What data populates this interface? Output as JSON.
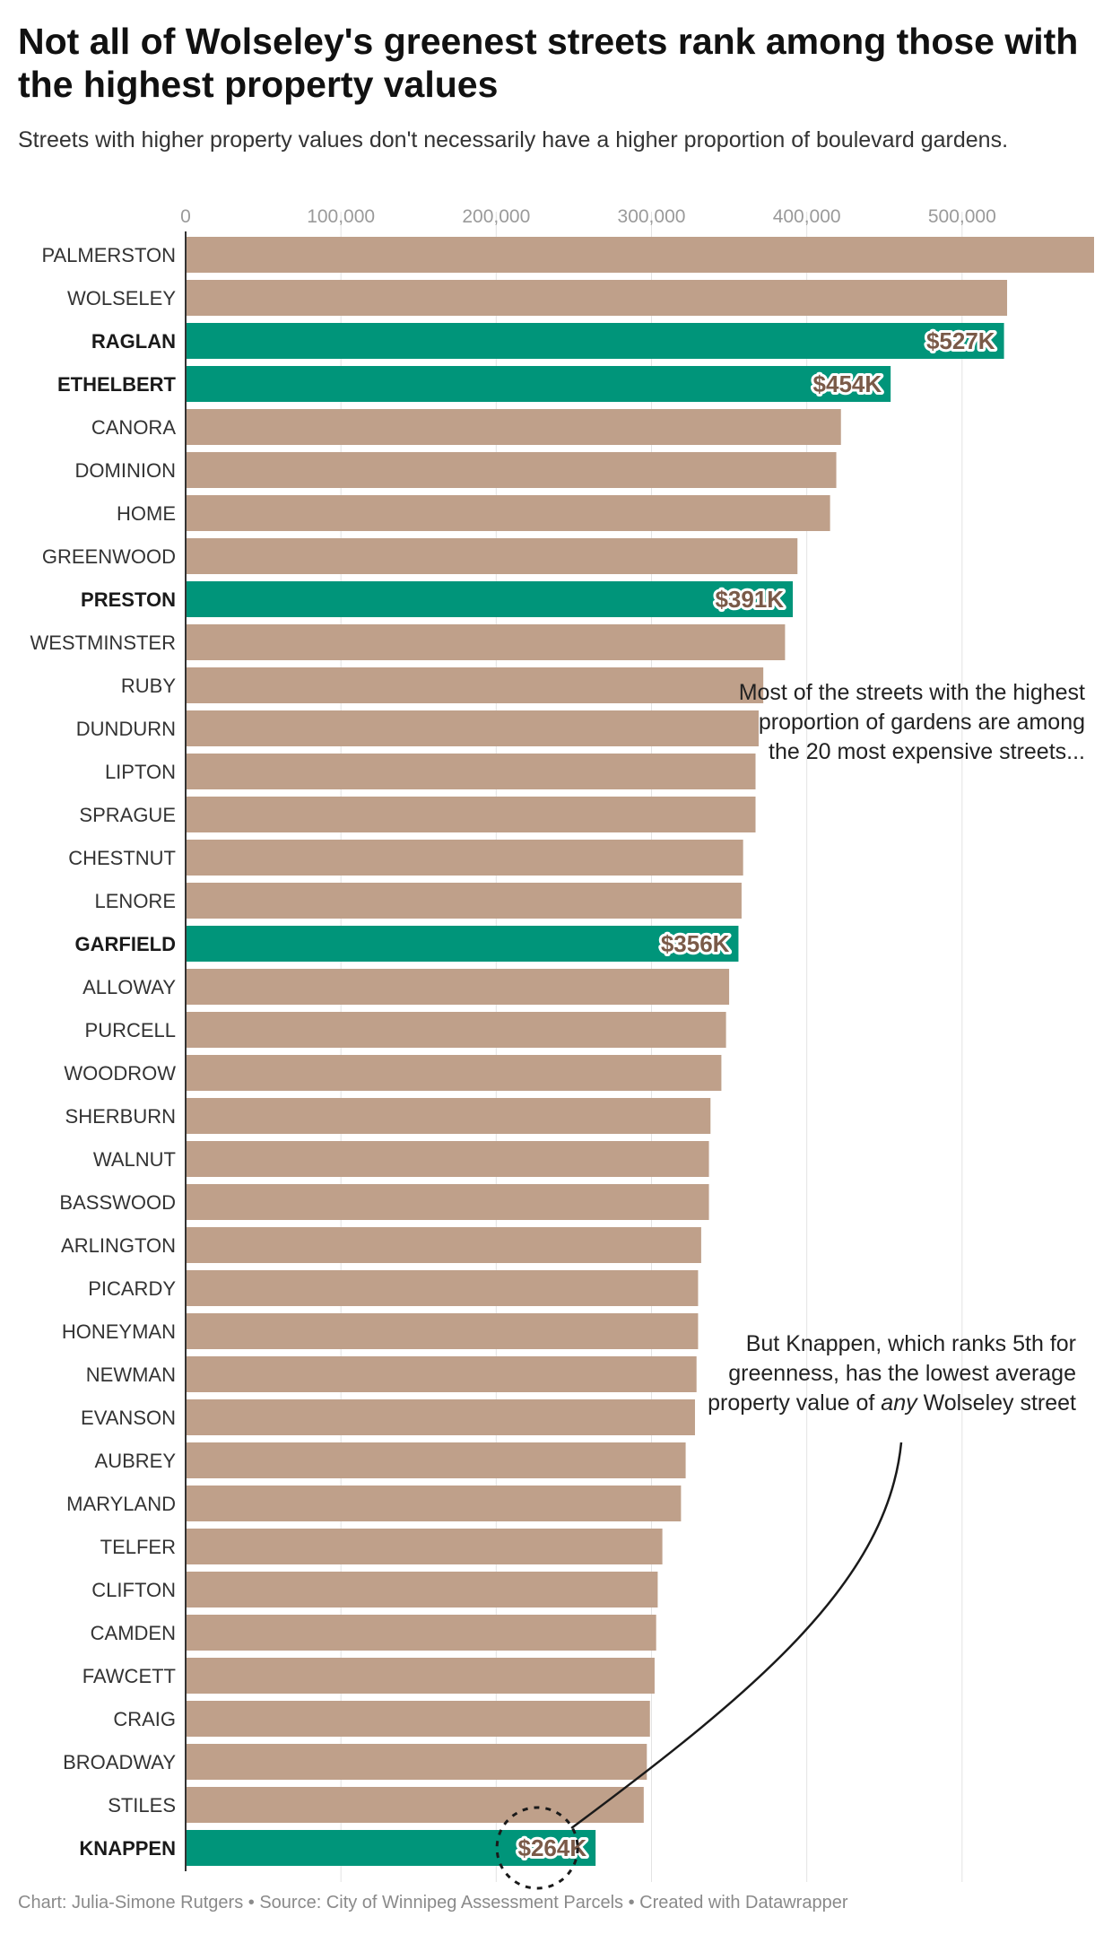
{
  "colors": {
    "bar": "#bfa08a",
    "highlight": "#00957a",
    "label": "#7a5a48"
  },
  "chart_data": {
    "type": "bar",
    "orientation": "horizontal",
    "title": "Not all of Wolseley's greenest streets rank among those with the highest property values",
    "subtitle": "Streets with higher property values don't necessarily have a higher proportion of boulevard gardens.",
    "xlim": [
      0,
      585000
    ],
    "ticks": [
      0,
      100000,
      200000,
      300000,
      400000,
      500000
    ],
    "tick_labels": [
      "0",
      "100,000",
      "200,000",
      "300,000",
      "400,000",
      "500,000"
    ],
    "grid": true,
    "categories": [
      "PALMERSTON",
      "WOLSELEY",
      "RAGLAN",
      "ETHELBERT",
      "CANORA",
      "DOMINION",
      "HOME",
      "GREENWOOD",
      "PRESTON",
      "WESTMINSTER",
      "RUBY",
      "DUNDURN",
      "LIPTON",
      "SPRAGUE",
      "CHESTNUT",
      "LENORE",
      "GARFIELD",
      "ALLOWAY",
      "PURCELL",
      "WOODROW",
      "SHERBURN",
      "WALNUT",
      "BASSWOOD",
      "ARLINGTON",
      "PICARDY",
      "HONEYMAN",
      "NEWMAN",
      "EVANSON",
      "AUBREY",
      "MARYLAND",
      "TELFER",
      "CLIFTON",
      "CAMDEN",
      "FAWCETT",
      "CRAIG",
      "BROADWAY",
      "STILES",
      "KNAPPEN"
    ],
    "values": [
      586000,
      529000,
      527000,
      454000,
      422000,
      419000,
      415000,
      394000,
      391000,
      386000,
      372000,
      369000,
      367000,
      367000,
      359000,
      358000,
      356000,
      350000,
      348000,
      345000,
      338000,
      337000,
      337000,
      332000,
      330000,
      330000,
      329000,
      328000,
      322000,
      319000,
      307000,
      304000,
      303000,
      302000,
      299000,
      297000,
      295000,
      264000
    ],
    "highlighted": [
      "RAGLAN",
      "ETHELBERT",
      "PRESTON",
      "GARFIELD",
      "KNAPPEN"
    ],
    "data_labels": [
      {
        "category": "RAGLAN",
        "text": "$527K"
      },
      {
        "category": "ETHELBERT",
        "text": "$454K"
      },
      {
        "category": "PRESTON",
        "text": "$391K"
      },
      {
        "category": "GARFIELD",
        "text": "$356K"
      },
      {
        "category": "KNAPPEN",
        "text": "$264K"
      }
    ]
  },
  "annotations": {
    "top": "Most of the streets with the highest proportion of gardens are among the 20 most expensive streets...",
    "bottom_prefix": "But Knappen, which ranks 5th for greenness, has the lowest average property value of",
    "bottom_emphasis": "any",
    "bottom_suffix": "Wolseley street"
  },
  "footer": "Chart: Julia-Simone Rutgers • Source: City of Winnipeg Assessment Parcels • Created with Datawrapper"
}
